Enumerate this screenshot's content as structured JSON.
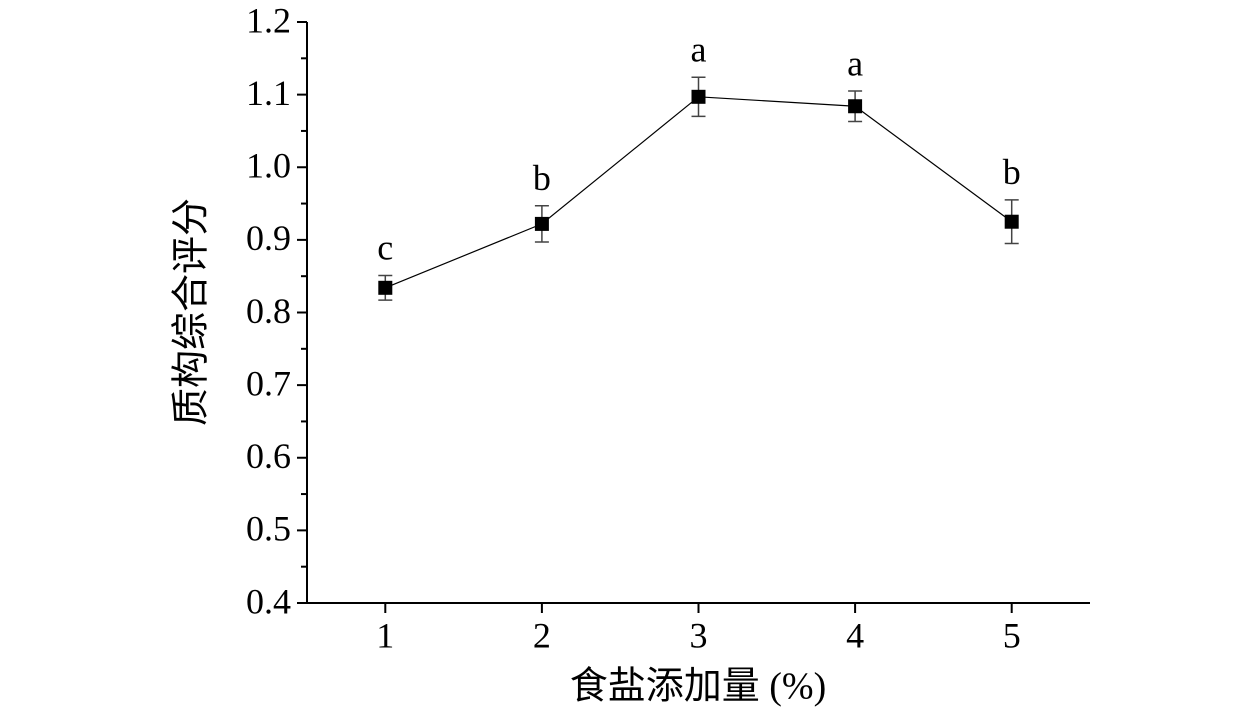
{
  "chart_data": {
    "type": "line",
    "ylabel": "质构综合评分",
    "xlabel": "食盐添加量 (%)",
    "x": [
      1,
      2,
      3,
      4,
      5
    ],
    "series": [
      {
        "color": "#000000",
        "values": [
          0.834,
          0.922,
          1.097,
          1.084,
          0.925
        ],
        "errors": [
          0.017,
          0.025,
          0.027,
          0.021,
          0.03
        ]
      }
    ],
    "annotations": [
      "c",
      "b",
      "a",
      "a",
      "b"
    ],
    "xlim": [
      0.5,
      5.5
    ],
    "xticks": [
      1,
      2,
      3,
      4,
      5
    ],
    "ylim": [
      0.4,
      1.2
    ],
    "yticks": [
      {
        "value": 0.4,
        "label": "0.4"
      },
      {
        "value": 0.5,
        "label": "0.5"
      },
      {
        "value": 0.6,
        "label": "0.6"
      },
      {
        "value": 0.7,
        "label": "0.7"
      },
      {
        "value": 0.8,
        "label": "0.8"
      },
      {
        "value": 0.9,
        "label": "0.9"
      },
      {
        "value": 1.0,
        "label": "1.0"
      },
      {
        "value": 1.1,
        "label": "1.1"
      },
      {
        "value": 1.2,
        "label": "1.2"
      }
    ],
    "yminorticks": [
      0.45,
      0.55,
      0.65,
      0.75,
      0.85,
      0.95,
      1.05,
      1.15
    ],
    "grid": false
  }
}
